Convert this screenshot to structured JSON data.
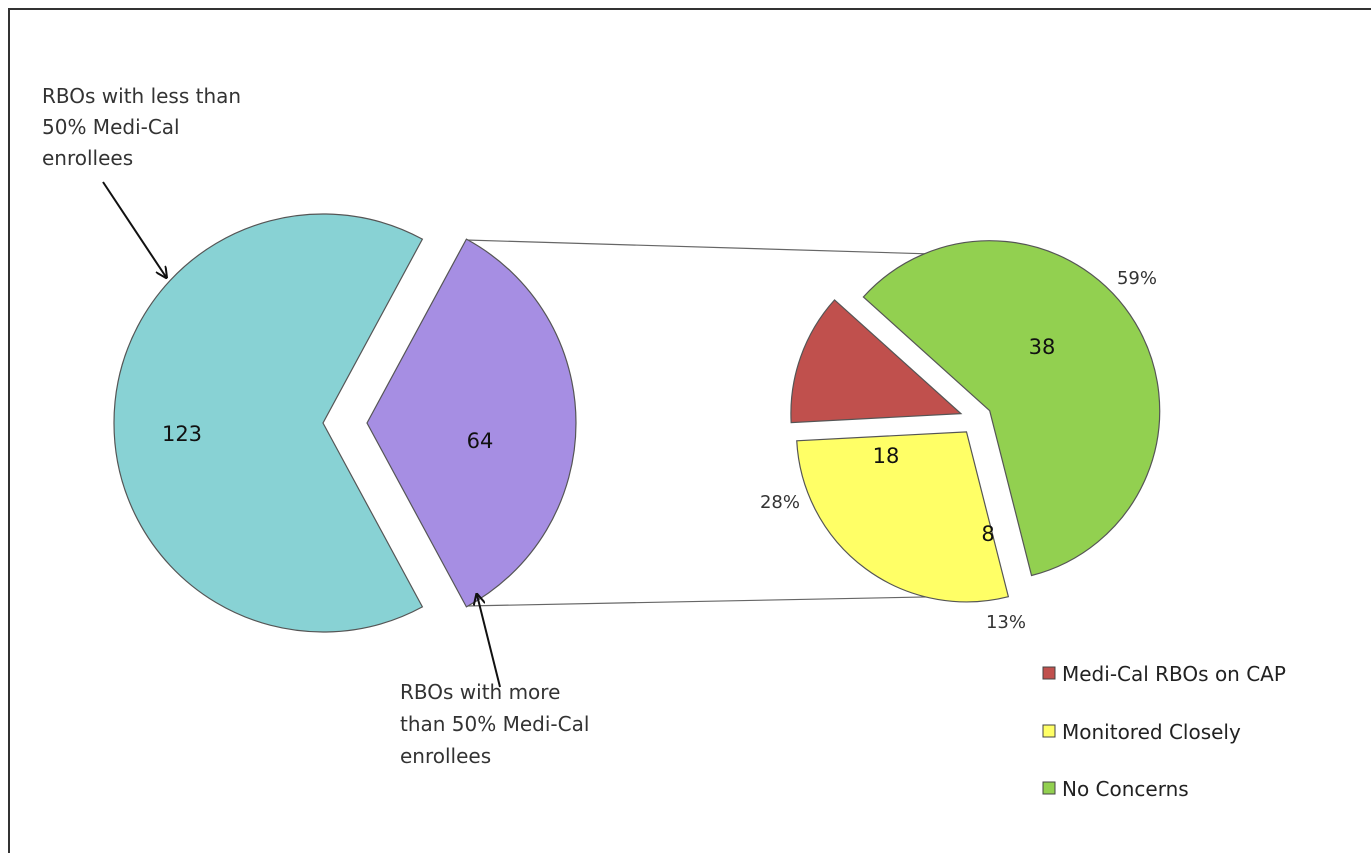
{
  "chart_data": {
    "type": "pie",
    "subtype": "pie-of-pie",
    "main_pie": {
      "slices": [
        {
          "id": "less",
          "value": 123,
          "label": "123",
          "color": "#88D2D4",
          "annotation": [
            "RBOs with less than",
            "50% Medi-Cal",
            "enrollees"
          ]
        },
        {
          "id": "more",
          "value": 64,
          "label": "64",
          "color": "#A68EE3",
          "annotation": [
            "RBOs with more",
            "than 50% Medi-Cal",
            "enrollees"
          ]
        }
      ]
    },
    "secondary_pie": {
      "slices": [
        {
          "name": "No Concerns",
          "value": 38,
          "label": "38",
          "percent": "59%",
          "color": "#92D050"
        },
        {
          "name": "Monitored Closely",
          "value": 18,
          "label": "18",
          "percent": "28%",
          "color": "#FFFF66"
        },
        {
          "name": "Medi-Cal RBOs on CAP",
          "value": 8,
          "label": "8",
          "percent": "13%",
          "color": "#C0504D"
        }
      ]
    },
    "legend": [
      {
        "name": "Medi-Cal RBOs on CAP",
        "color": "#C0504D"
      },
      {
        "name": "Monitored Closely",
        "color": "#FFFF66"
      },
      {
        "name": "No Concerns",
        "color": "#92D050"
      }
    ],
    "legend_position": "bottom-right"
  }
}
